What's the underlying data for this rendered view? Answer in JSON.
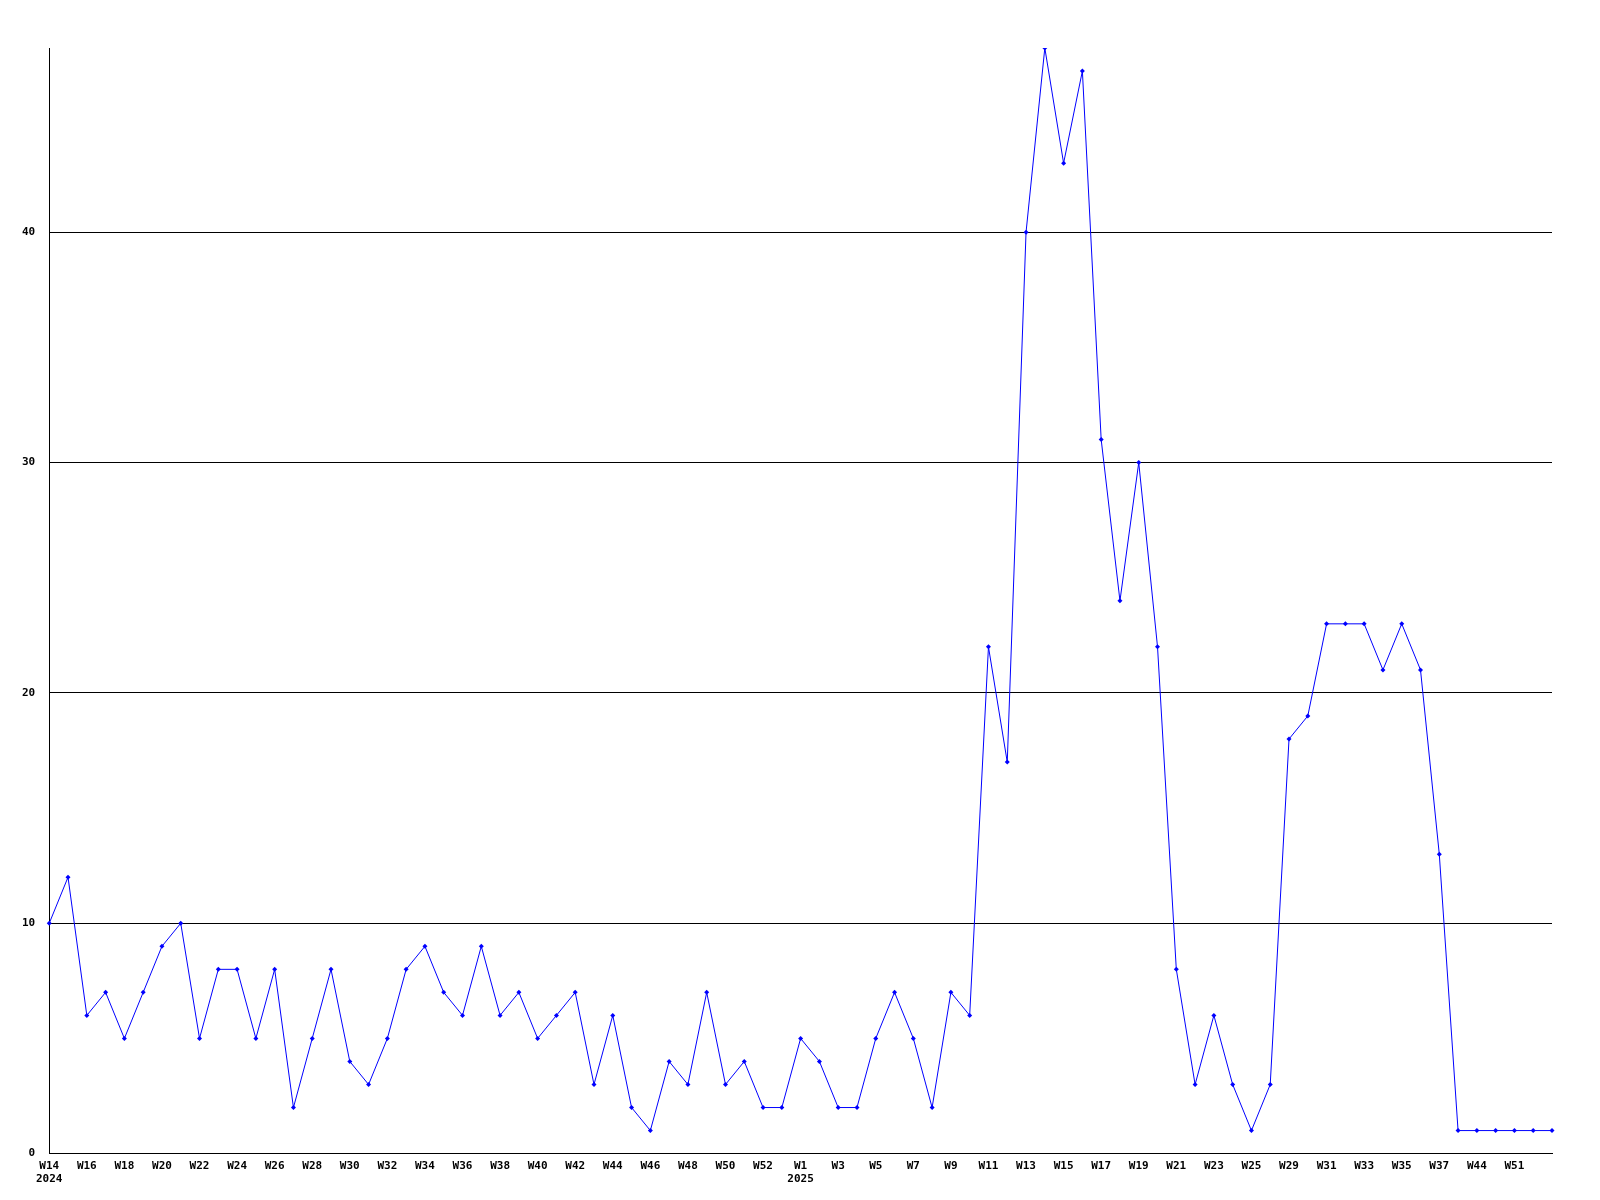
{
  "chart_data": {
    "type": "line",
    "categories": [
      "W14\n2024",
      null,
      "W16",
      null,
      "W18",
      null,
      "W20",
      null,
      "W22",
      null,
      "W24",
      null,
      "W26",
      null,
      "W28",
      null,
      "W30",
      null,
      "W32",
      null,
      "W34",
      null,
      "W36",
      null,
      "W38",
      null,
      "W40",
      null,
      "W42",
      null,
      "W44",
      null,
      "W46",
      null,
      "W48",
      null,
      "W50",
      null,
      "W52",
      null,
      "W1\n2025",
      null,
      "W3",
      null,
      "W5",
      null,
      "W7",
      null,
      "W9",
      null,
      "W11",
      null,
      "W13",
      null,
      "W15",
      null,
      "W17",
      null,
      "W19",
      null,
      "W21",
      null,
      "W23",
      null,
      "W25",
      null,
      "W29",
      null,
      "W31",
      null,
      "W33",
      null,
      "W35",
      null,
      "W37",
      null,
      "W44",
      null,
      "W51",
      null,
      null
    ],
    "series": [
      {
        "color": "#0000ff",
        "values": [
          10,
          12,
          6,
          7,
          5,
          7,
          9,
          10,
          5,
          8,
          8,
          5,
          8,
          2,
          5,
          8,
          4,
          3,
          5,
          8,
          9,
          7,
          6,
          9,
          6,
          7,
          5,
          6,
          7,
          3,
          6,
          2,
          1,
          4,
          3,
          7,
          3,
          4,
          2,
          2,
          5,
          4,
          2,
          2,
          5,
          7,
          5,
          2,
          7,
          6,
          22,
          17,
          40,
          48,
          43,
          47,
          31,
          24,
          30,
          22,
          8,
          3,
          6,
          3,
          1,
          3,
          18,
          19,
          23,
          23,
          23,
          21,
          23,
          21,
          13,
          1,
          1,
          1,
          1,
          1,
          1
        ]
      }
    ],
    "ylim": [
      0,
      48
    ],
    "yticks": [
      0,
      10,
      20,
      30,
      40
    ],
    "grid": "y",
    "legend": false,
    "marker": "diamond",
    "line_style": "solid"
  }
}
